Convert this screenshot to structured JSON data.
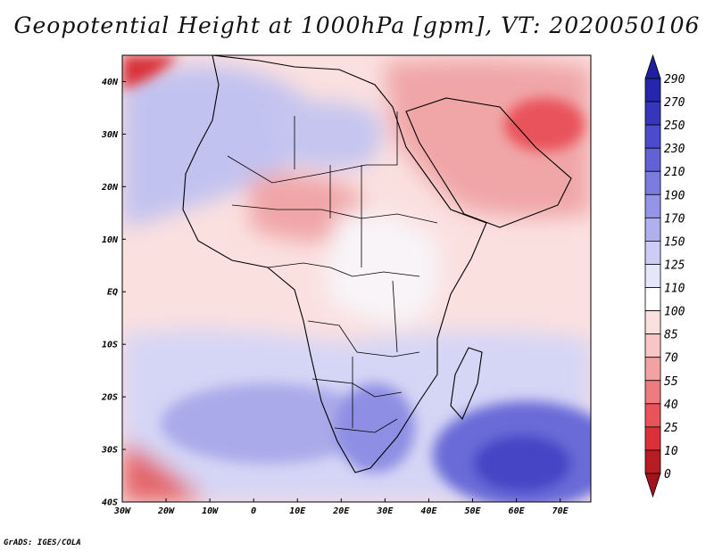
{
  "title": "Geopotential Height at 1000hPa [gpm], VT: 2020050106",
  "credit": "GrADS: IGES/COLA",
  "map": {
    "lon_range": [
      -30,
      77
    ],
    "lat_range": [
      -40,
      45
    ],
    "lat_ticks": [
      {
        "value": 40,
        "label": "40N"
      },
      {
        "value": 30,
        "label": "30N"
      },
      {
        "value": 20,
        "label": "20N"
      },
      {
        "value": 10,
        "label": "10N"
      },
      {
        "value": 0,
        "label": "EQ"
      },
      {
        "value": -10,
        "label": "10S"
      },
      {
        "value": -20,
        "label": "20S"
      },
      {
        "value": -30,
        "label": "30S"
      },
      {
        "value": -40,
        "label": "40S"
      }
    ],
    "lon_ticks": [
      {
        "value": -30,
        "label": "30W"
      },
      {
        "value": -20,
        "label": "20W"
      },
      {
        "value": -10,
        "label": "10W"
      },
      {
        "value": 0,
        "label": "0"
      },
      {
        "value": 10,
        "label": "10E"
      },
      {
        "value": 20,
        "label": "20E"
      },
      {
        "value": 30,
        "label": "30E"
      },
      {
        "value": 40,
        "label": "40E"
      },
      {
        "value": 50,
        "label": "50E"
      },
      {
        "value": 60,
        "label": "60E"
      },
      {
        "value": 70,
        "label": "70E"
      }
    ]
  },
  "colorbar": {
    "levels": [
      "0",
      "10",
      "25",
      "40",
      "55",
      "70",
      "85",
      "100",
      "110",
      "125",
      "150",
      "170",
      "190",
      "210",
      "230",
      "250",
      "270",
      "290"
    ],
    "colors": [
      "#b71c24",
      "#d9303a",
      "#e9535b",
      "#ef7a7f",
      "#f3a2a4",
      "#f8c6c7",
      "#fbe0e0",
      "#ffffff",
      "#e6e6fb",
      "#ccccf5",
      "#b0b0ee",
      "#9595e8",
      "#7b7be0",
      "#6262d6",
      "#4b4bcb",
      "#3636bd",
      "#2626ad"
    ]
  }
}
